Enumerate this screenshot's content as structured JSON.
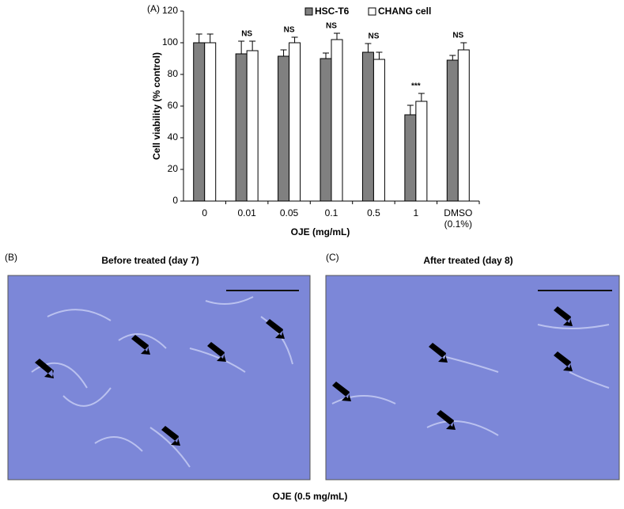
{
  "chart_data": {
    "type": "bar",
    "panel_label": "(A)",
    "y_label": "Cell viability (% control)",
    "x_label": "OJE (mg/mL)",
    "categories": [
      "0",
      "0.01",
      "0.05",
      "0.1",
      "0.5",
      "1",
      "DMSO (0.1%)"
    ],
    "series": [
      {
        "name": "HSC-T6",
        "color": "#808080",
        "values": [
          100,
          93,
          91.5,
          90,
          94,
          54.5,
          89
        ],
        "errors": [
          5.5,
          8,
          4,
          3.5,
          5.5,
          6,
          3
        ]
      },
      {
        "name": "CHANG cell",
        "color": "#ffffff",
        "values": [
          100,
          95,
          100,
          102,
          89.5,
          63,
          95.5
        ],
        "errors": [
          5.5,
          6,
          3.5,
          4,
          4.5,
          5,
          4.5
        ]
      }
    ],
    "ylim": [
      0,
      120
    ],
    "yticks": [
      0,
      20,
      40,
      60,
      80,
      100,
      120
    ],
    "annotations": [
      {
        "x": "0.01",
        "text": "NS"
      },
      {
        "x": "0.05",
        "text": "NS"
      },
      {
        "x": "0.1",
        "text": "NS"
      },
      {
        "x": "0.5",
        "text": "NS"
      },
      {
        "x": "1",
        "text": "***"
      },
      {
        "x": "DMSO (0.1%)",
        "text": "NS"
      }
    ]
  },
  "panels": [
    {
      "label": "(B)",
      "title": "Before treated (day 7)"
    },
    {
      "label": "(C)",
      "title": "After treated (day 8)"
    }
  ],
  "caption": "OJE (0.5 mg/mL)"
}
